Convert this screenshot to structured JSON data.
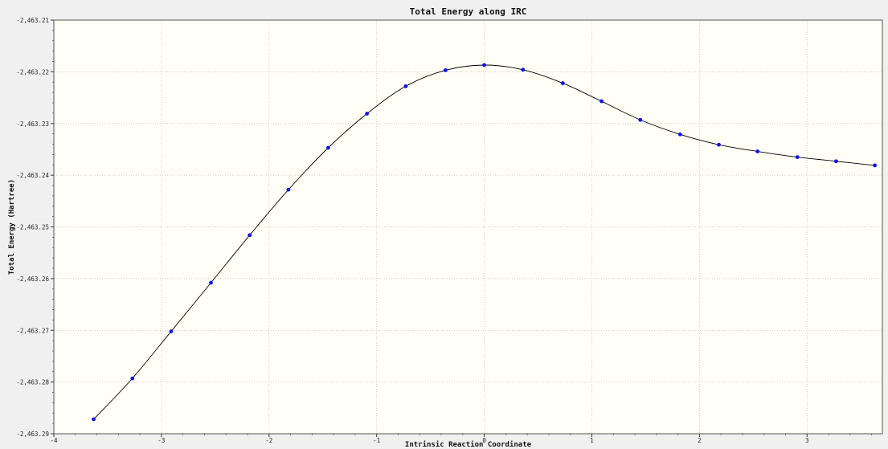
{
  "chart_data": {
    "type": "line",
    "title": "Total Energy along IRC",
    "xlabel": "Intrinsic Reaction Coordinate",
    "ylabel": "Total Energy (Hartree)",
    "xlim": [
      -4,
      3.7
    ],
    "ylim": [
      -2463.29,
      -2463.21
    ],
    "xticks": [
      -4,
      -3,
      -2,
      -1,
      0,
      1,
      2,
      3
    ],
    "xtick_labels": [
      "-4",
      "-3",
      "-2",
      "-1",
      "0",
      "1",
      "2",
      "3"
    ],
    "yticks": [
      -2463.21,
      -2463.22,
      -2463.23,
      -2463.24,
      -2463.25,
      -2463.26,
      -2463.27,
      -2463.28,
      -2463.29
    ],
    "ytick_labels": [
      "-2,463.21",
      "-2,463.22",
      "-2,463.23",
      "-2,463.24",
      "-2,463.25",
      "-2,463.26",
      "-2,463.27",
      "-2,463.28",
      "-2,463.29"
    ],
    "grid": true,
    "series": [
      {
        "x": [
          -3.63,
          -3.27,
          -2.91,
          -2.54,
          -2.18,
          -1.82,
          -1.45,
          -1.09,
          -0.73,
          -0.36,
          0,
          0.36,
          0.73,
          1.09,
          1.45,
          1.82,
          2.18,
          2.54,
          2.91,
          3.27,
          3.63
        ],
        "y": [
          -2463.2872,
          -2463.2793,
          -2463.2702,
          -2463.2608,
          -2463.2516,
          -2463.2428,
          -2463.2347,
          -2463.2281,
          -2463.2228,
          -2463.2197,
          -2463.2187,
          -2463.2196,
          -2463.2222,
          -2463.2257,
          -2463.2293,
          -2463.2321,
          -2463.2341,
          -2463.2354,
          -2463.2365,
          -2463.2373,
          -2463.2381
        ]
      }
    ],
    "colors": {
      "line": "#000000",
      "marker": "#1010ee",
      "plot_background": "#fffff6",
      "frame_background": "#f0f0f0",
      "grid": "#bdbdbd"
    }
  }
}
